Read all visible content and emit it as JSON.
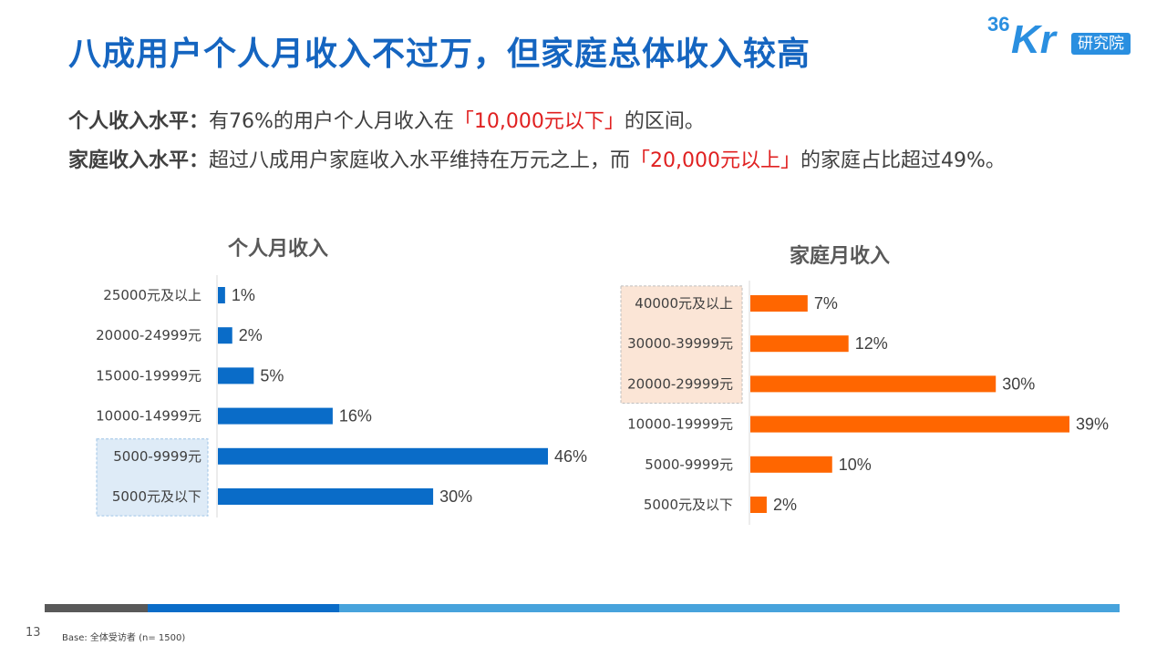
{
  "page": {
    "title": "八成用户个人月收入不过万，但家庭总体收入较高",
    "logo": {
      "mark_num": "36",
      "mark_kr": "Kr",
      "tag": "研究院"
    },
    "summary": {
      "line1": {
        "label": "个人收入水平：",
        "text_before": "有76%的用户个人月收入在",
        "highlight": "「10,000元以下」",
        "text_after": "的区间。"
      },
      "line2": {
        "label": "家庭收入水平：",
        "text_before": "超过八成用户家庭收入水平维持在万元之上，而",
        "highlight": "「20,000元以上」",
        "text_after": "的家庭占比超过49%。"
      }
    },
    "footer": {
      "page_number": "13",
      "base_note": "Base: 全体受访者 (n= 1500)"
    }
  },
  "colors": {
    "title": "#1565c0",
    "personal_bar": "#0a6cc8",
    "family_bar": "#ff6600",
    "highlight_text": "#e02020",
    "personal_highlight_fill": "#deebf7",
    "family_highlight_fill": "#fbe5d6"
  },
  "chart_data": [
    {
      "type": "bar",
      "orientation": "horizontal",
      "title": "个人月收入",
      "categories": [
        "25000元及以上",
        "20000-24999元",
        "15000-19999元",
        "10000-14999元",
        "5000-9999元",
        "5000元及以下"
      ],
      "values": [
        1,
        2,
        5,
        16,
        46,
        30
      ],
      "value_labels": [
        "1%",
        "2%",
        "5%",
        "16%",
        "46%",
        "30%"
      ],
      "unit": "%",
      "xlim": [
        0,
        50
      ],
      "highlighted_categories": [
        "5000-9999元",
        "5000元及以下"
      ],
      "grid": false
    },
    {
      "type": "bar",
      "orientation": "horizontal",
      "title": "家庭月收入",
      "categories": [
        "40000元及以上",
        "30000-39999元",
        "20000-29999元",
        "10000-19999元",
        "5000-9999元",
        "5000元及以下"
      ],
      "values": [
        7,
        12,
        30,
        39,
        10,
        2
      ],
      "value_labels": [
        "7%",
        "12%",
        "30%",
        "39%",
        "10%",
        "2%"
      ],
      "unit": "%",
      "xlim": [
        0,
        40
      ],
      "highlighted_categories": [
        "40000元及以上",
        "30000-39999元",
        "20000-29999元"
      ],
      "grid": false
    }
  ]
}
